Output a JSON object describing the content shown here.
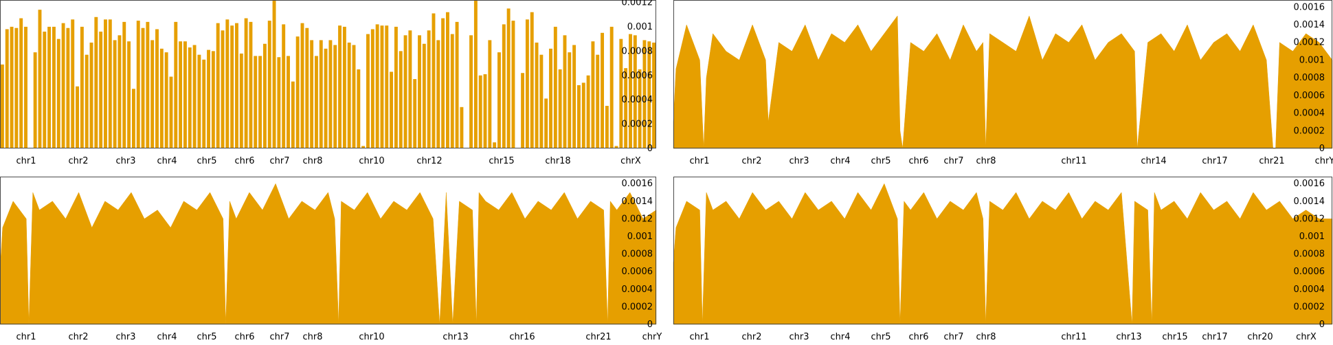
{
  "chart_data": [
    {
      "type": "bar",
      "title": "",
      "xlabel": "",
      "ylabel": "",
      "ylim": [
        0,
        0.00122
      ],
      "y_ticks": [
        "0",
        "0.0002",
        "0.0004",
        "0.0006",
        "0.0008",
        "0.001",
        "0.0012"
      ],
      "x_ticks": [
        "chr1",
        "chr2",
        "chr3",
        "chr4",
        "chr5",
        "chr6",
        "chr7",
        "chr8",
        "chr10",
        "chr12",
        "chr15",
        "chr18",
        "chrX"
      ],
      "y_axis_side": "right",
      "grid": false,
      "color": "#E69F00",
      "values": [
        0.00069,
        0.00098,
        0.001,
        0.00099,
        0.00107,
        0.001,
        0.0,
        0.00079,
        0.00114,
        0.00096,
        0.001,
        0.001,
        0.0009,
        0.00103,
        0.00099,
        0.00106,
        0.00051,
        0.001,
        0.00077,
        0.00087,
        0.00108,
        0.00096,
        0.00106,
        0.00106,
        0.00089,
        0.00093,
        0.00104,
        0.00088,
        0.00049,
        0.00105,
        0.00099,
        0.00104,
        0.00089,
        0.00098,
        0.00082,
        0.00079,
        0.00059,
        0.00104,
        0.00088,
        0.00088,
        0.00083,
        0.00085,
        0.00077,
        0.00073,
        0.00081,
        0.0008,
        0.00103,
        0.00097,
        0.00106,
        0.00101,
        0.00103,
        0.00078,
        0.00107,
        0.00104,
        0.00076,
        0.00076,
        0.00086,
        0.00105,
        0.00122,
        0.00075,
        0.00102,
        0.00076,
        0.00055,
        0.00092,
        0.00103,
        0.00099,
        0.00089,
        0.00076,
        0.00089,
        0.00082,
        0.00089,
        0.00085,
        0.00101,
        0.001,
        0.00087,
        0.00085,
        0.00065,
        2e-05,
        0.00094,
        0.00098,
        0.00102,
        0.00101,
        0.00101,
        0.00063,
        0.001,
        0.0008,
        0.00093,
        0.00097,
        0.00057,
        0.00093,
        0.00086,
        0.00097,
        0.00111,
        0.00089,
        0.00107,
        0.00112,
        0.00094,
        0.00104,
        0.00034,
        0.0,
        0.00093,
        0.00122,
        0.0006,
        0.00061,
        0.00089,
        5e-05,
        0.00079,
        0.00102,
        0.00115,
        0.00105,
        0.0,
        0.00062,
        0.00106,
        0.00112,
        0.00087,
        0.00077,
        0.00041,
        0.00082,
        0.001,
        0.00065,
        0.00093,
        0.00079,
        0.00085,
        0.00052,
        0.00054,
        0.0006,
        0.00088,
        0.00077,
        0.00095,
        0.00035,
        0.001,
        2e-05,
        0.0009,
        0.00066,
        0.00094,
        0.00093,
        0.00065,
        0.00089,
        0.00088,
        0.00087
      ]
    },
    {
      "type": "area",
      "title": "",
      "xlabel": "",
      "ylabel": "",
      "ylim": [
        0,
        0.00168
      ],
      "y_ticks": [
        "0",
        "0.0002",
        "0.0004",
        "0.0006",
        "0.0008",
        "0.001",
        "0.0012",
        "0.0014",
        "0.0016"
      ],
      "x_ticks": [
        "chr1",
        "chr2",
        "chr3",
        "chr4",
        "chr5",
        "chr6",
        "chr7",
        "chr8",
        "chr11",
        "chr14",
        "chr17",
        "chr21",
        "chrY"
      ],
      "y_axis_side": "right",
      "grid": false,
      "color": "#E69F00",
      "x": [
        0,
        0.4,
        2,
        4,
        4.6,
        5,
        6,
        8,
        10,
        12,
        14,
        14.4,
        16,
        18,
        20,
        22,
        24,
        26,
        28,
        30,
        32,
        34,
        34.4,
        34.8,
        36,
        38,
        40,
        42,
        44,
        46,
        47,
        47.4,
        48,
        50,
        52,
        54,
        56,
        58,
        60,
        62,
        64,
        66,
        68,
        70,
        70.4,
        72,
        74,
        76,
        78,
        80,
        82,
        84,
        86,
        88,
        90,
        91,
        91.4,
        92,
        94,
        96,
        98,
        100
      ],
      "values": [
        0.0003,
        0.0009,
        0.0014,
        0.001,
        0.0,
        0.0008,
        0.0013,
        0.0011,
        0.001,
        0.0014,
        0.001,
        0.0003,
        0.0012,
        0.0011,
        0.0014,
        0.001,
        0.0013,
        0.0012,
        0.0014,
        0.0011,
        0.0013,
        0.0015,
        0.0002,
        0.0,
        0.0012,
        0.0011,
        0.0013,
        0.001,
        0.0014,
        0.0011,
        0.0012,
        0.0,
        0.0013,
        0.0012,
        0.0011,
        0.0015,
        0.001,
        0.0013,
        0.0012,
        0.0014,
        0.001,
        0.0012,
        0.0013,
        0.0011,
        0.0,
        0.0012,
        0.0013,
        0.0011,
        0.0014,
        0.001,
        0.0012,
        0.0013,
        0.0011,
        0.0014,
        0.001,
        0.0,
        0.0,
        0.0012,
        0.0011,
        0.0013,
        0.0012,
        0.001
      ]
    },
    {
      "type": "area",
      "title": "",
      "xlabel": "",
      "ylabel": "",
      "ylim": [
        0,
        0.00168
      ],
      "y_ticks": [
        "0",
        "0.0002",
        "0.0004",
        "0.0006",
        "0.0008",
        "0.001",
        "0.0012",
        "0.0014",
        "0.0016"
      ],
      "x_ticks": [
        "chr1",
        "chr2",
        "chr3",
        "chr4",
        "chr5",
        "chr6",
        "chr7",
        "chr8",
        "chr10",
        "chr13",
        "chr16",
        "chr21",
        "chrY"
      ],
      "y_axis_side": "right",
      "grid": false,
      "color": "#E69F00",
      "x": [
        0,
        0.4,
        2,
        4,
        4.4,
        5,
        6,
        8,
        10,
        12,
        14,
        16,
        18,
        20,
        22,
        24,
        26,
        28,
        30,
        32,
        34,
        34.4,
        35,
        36,
        38,
        40,
        42,
        44,
        46,
        48,
        50,
        51,
        51.6,
        52,
        54,
        56,
        58,
        60,
        62,
        64,
        66,
        67,
        68,
        69,
        70,
        72,
        72.6,
        73,
        74,
        76,
        78,
        80,
        82,
        84,
        86,
        88,
        90,
        92,
        92.6,
        93,
        94,
        96,
        98,
        100
      ],
      "values": [
        0.0006,
        0.0011,
        0.0014,
        0.0012,
        0.0,
        0.0015,
        0.0013,
        0.0014,
        0.0012,
        0.0015,
        0.0011,
        0.0014,
        0.0013,
        0.0015,
        0.0012,
        0.0013,
        0.0011,
        0.0014,
        0.0013,
        0.0015,
        0.0012,
        0.0,
        0.0014,
        0.0012,
        0.0015,
        0.0013,
        0.0016,
        0.0012,
        0.0014,
        0.0013,
        0.0015,
        0.0012,
        0.0,
        0.0014,
        0.0013,
        0.0015,
        0.0012,
        0.0014,
        0.0013,
        0.0015,
        0.0012,
        0.0,
        0.0015,
        0.0,
        0.0014,
        0.0013,
        0.0,
        0.0015,
        0.0014,
        0.0013,
        0.0015,
        0.0012,
        0.0014,
        0.0013,
        0.0015,
        0.0012,
        0.0014,
        0.0013,
        0.0,
        0.0014,
        0.0013,
        0.0015,
        0.0012,
        0.0013
      ]
    },
    {
      "type": "area",
      "title": "",
      "xlabel": "",
      "ylabel": "",
      "ylim": [
        0,
        0.00168
      ],
      "y_ticks": [
        "0",
        "0.0002",
        "0.0004",
        "0.0006",
        "0.0008",
        "0.001",
        "0.0012",
        "0.0014",
        "0.0016"
      ],
      "x_ticks": [
        "chr1",
        "chr2",
        "chr3",
        "chr4",
        "chr5",
        "chr6",
        "chr7",
        "chr8",
        "chr11",
        "chr13",
        "chr15",
        "chr17",
        "chr20",
        "chrX"
      ],
      "y_axis_side": "right",
      "grid": false,
      "color": "#E69F00",
      "x": [
        0,
        0.4,
        2,
        4,
        4.4,
        5,
        6,
        8,
        10,
        12,
        14,
        16,
        18,
        20,
        22,
        24,
        26,
        28,
        30,
        32,
        34,
        34.4,
        35,
        36,
        38,
        40,
        42,
        44,
        46,
        47,
        47.4,
        48,
        50,
        52,
        54,
        56,
        58,
        60,
        62,
        64,
        66,
        68,
        69.6,
        70,
        72,
        72.6,
        73,
        74,
        76,
        78,
        80,
        82,
        84,
        86,
        88,
        90,
        92,
        94,
        96,
        98,
        100
      ],
      "values": [
        0.0007,
        0.0011,
        0.0014,
        0.0013,
        0.0,
        0.0015,
        0.0013,
        0.0014,
        0.0012,
        0.0015,
        0.0013,
        0.0014,
        0.0012,
        0.0015,
        0.0013,
        0.0014,
        0.0012,
        0.0015,
        0.0013,
        0.0016,
        0.0012,
        0.0,
        0.0014,
        0.0013,
        0.0015,
        0.0012,
        0.0014,
        0.0013,
        0.0015,
        0.0012,
        0.0,
        0.0014,
        0.0013,
        0.0015,
        0.0012,
        0.0014,
        0.0013,
        0.0015,
        0.0012,
        0.0014,
        0.0013,
        0.0015,
        0.0,
        0.0014,
        0.0013,
        0.0,
        0.0015,
        0.0013,
        0.0014,
        0.0012,
        0.0015,
        0.0013,
        0.0014,
        0.0012,
        0.0015,
        0.0013,
        0.0014,
        0.0012,
        0.0013,
        0.0012,
        0.0012
      ]
    }
  ]
}
